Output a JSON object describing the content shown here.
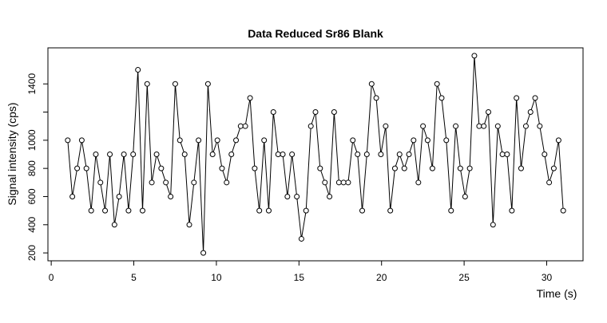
{
  "chart_data": {
    "type": "line",
    "title": "Data Reduced Sr86 Blank",
    "x_label": "Time (s)",
    "y_label": "Signal intensity (cps)",
    "x": [
      1.0,
      1.28,
      1.57,
      1.85,
      2.13,
      2.42,
      2.7,
      2.98,
      3.26,
      3.55,
      3.83,
      4.11,
      4.4,
      4.68,
      4.96,
      5.25,
      5.53,
      5.81,
      6.09,
      6.38,
      6.66,
      6.94,
      7.23,
      7.51,
      7.79,
      8.08,
      8.36,
      8.64,
      8.92,
      9.21,
      9.49,
      9.77,
      10.06,
      10.34,
      10.62,
      10.91,
      11.19,
      11.47,
      11.75,
      12.04,
      12.32,
      12.6,
      12.89,
      13.17,
      13.45,
      13.74,
      14.02,
      14.3,
      14.58,
      14.87,
      15.15,
      15.43,
      15.72,
      16.0,
      16.28,
      16.57,
      16.85,
      17.13,
      17.42,
      17.7,
      17.98,
      18.26,
      18.55,
      18.83,
      19.11,
      19.4,
      19.68,
      19.96,
      20.25,
      20.53,
      20.81,
      21.09,
      21.38,
      21.66,
      21.94,
      22.23,
      22.51,
      22.79,
      23.08,
      23.36,
      23.64,
      23.92,
      24.21,
      24.49,
      24.77,
      25.06,
      25.34,
      25.62,
      25.91,
      26.19,
      26.47,
      26.75,
      27.04,
      27.32,
      27.6,
      27.89,
      28.17,
      28.45,
      28.74,
      29.02,
      29.3,
      29.58,
      29.87,
      30.15,
      30.43,
      30.72,
      31.0
    ],
    "series": [
      {
        "color": "#000000",
        "values": [
          1000,
          600,
          800,
          1000,
          800,
          500,
          900,
          700,
          500,
          900,
          400,
          600,
          900,
          500,
          900,
          1500,
          500,
          1400,
          700,
          900,
          800,
          700,
          600,
          1400,
          1000,
          900,
          400,
          700,
          1000,
          200,
          1400,
          900,
          1000,
          800,
          700,
          900,
          1000,
          1100,
          1100,
          1300,
          800,
          500,
          1000,
          500,
          1200,
          900,
          900,
          600,
          900,
          600,
          300,
          500,
          1100,
          1200,
          800,
          700,
          600,
          1200,
          700,
          700,
          700,
          1000,
          900,
          500,
          900,
          1400,
          1300,
          900,
          1100,
          500,
          800,
          900,
          800,
          900,
          1000,
          700,
          1100,
          1000,
          800,
          1400,
          1300,
          1000,
          500,
          1100,
          800,
          600,
          800,
          1600,
          1100,
          1100,
          1200,
          400,
          1100,
          900,
          900,
          500,
          1300,
          800,
          1100,
          1200,
          1300,
          1100,
          900,
          700,
          800,
          1000,
          500
        ]
      }
    ],
    "xlim": [
      -0.2,
      32.2
    ],
    "ylim": [
      144,
      1656
    ],
    "xticks": [
      0,
      5,
      10,
      15,
      20,
      25,
      30
    ],
    "yticks": [
      200,
      400,
      600,
      800,
      1000,
      {
        "value": 1200,
        "label": null
      },
      1400
    ]
  }
}
